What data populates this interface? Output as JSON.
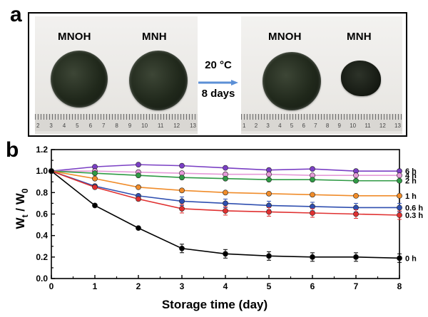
{
  "panel_labels": {
    "a": "a",
    "b": "b"
  },
  "photo_panel": {
    "left_labels": [
      "MNOH",
      "MNH"
    ],
    "right_labels": [
      "MNOH",
      "MNH"
    ],
    "arrow_line1": "20 °C",
    "arrow_line2": "8 days",
    "ruler_left": [
      "2",
      "3",
      "4",
      "5",
      "6",
      "7",
      "8",
      "9",
      "10",
      "11",
      "12",
      "13"
    ],
    "ruler_right": [
      "1",
      "2",
      "3",
      "4",
      "5",
      "6",
      "7",
      "8",
      "9",
      "10",
      "11",
      "12",
      "13"
    ]
  },
  "chart_data": {
    "type": "line",
    "xlabel": "Storage time (day)",
    "ylabel": "Wt / W0",
    "ylabel_parts": {
      "main1": "W",
      "sub1": "t",
      "main2": " / W",
      "sub2": "0"
    },
    "x": [
      0,
      1,
      2,
      3,
      4,
      5,
      6,
      7,
      8
    ],
    "xlim": [
      0,
      8
    ],
    "ylim": [
      0.0,
      1.2
    ],
    "xticks": [
      "0",
      "1",
      "2",
      "3",
      "4",
      "5",
      "6",
      "7",
      "8"
    ],
    "yticks": [
      "0.0",
      "0.2",
      "0.4",
      "0.6",
      "0.8",
      "1.0",
      "1.2"
    ],
    "grid": false,
    "legend": "inline labels at right end of each series",
    "series": [
      {
        "name": "6 h",
        "color": "#7a3fc4",
        "values": [
          1.0,
          1.04,
          1.06,
          1.05,
          1.03,
          1.01,
          1.02,
          1.0,
          1.0
        ]
      },
      {
        "name": "4 h",
        "color": "#e59ad8",
        "values": [
          1.0,
          1.0,
          0.99,
          0.98,
          0.97,
          0.97,
          0.96,
          0.96,
          0.96
        ]
      },
      {
        "name": "2 h",
        "color": "#2f9a45",
        "values": [
          1.0,
          0.98,
          0.96,
          0.94,
          0.93,
          0.92,
          0.92,
          0.91,
          0.91
        ]
      },
      {
        "name": "1 h",
        "color": "#f08c2a",
        "values": [
          1.0,
          0.93,
          0.85,
          0.82,
          0.8,
          0.79,
          0.78,
          0.77,
          0.77
        ]
      },
      {
        "name": "0.6 h",
        "color": "#2f4fb0",
        "values": [
          1.0,
          0.86,
          0.77,
          0.72,
          0.7,
          0.68,
          0.67,
          0.66,
          0.66
        ]
      },
      {
        "name": "0.3 h",
        "color": "#e03030",
        "values": [
          1.0,
          0.85,
          0.74,
          0.65,
          0.63,
          0.62,
          0.61,
          0.6,
          0.59
        ]
      },
      {
        "name": "0 h",
        "color": "#000000",
        "values": [
          1.0,
          0.68,
          0.47,
          0.28,
          0.23,
          0.21,
          0.2,
          0.2,
          0.19
        ]
      }
    ]
  }
}
